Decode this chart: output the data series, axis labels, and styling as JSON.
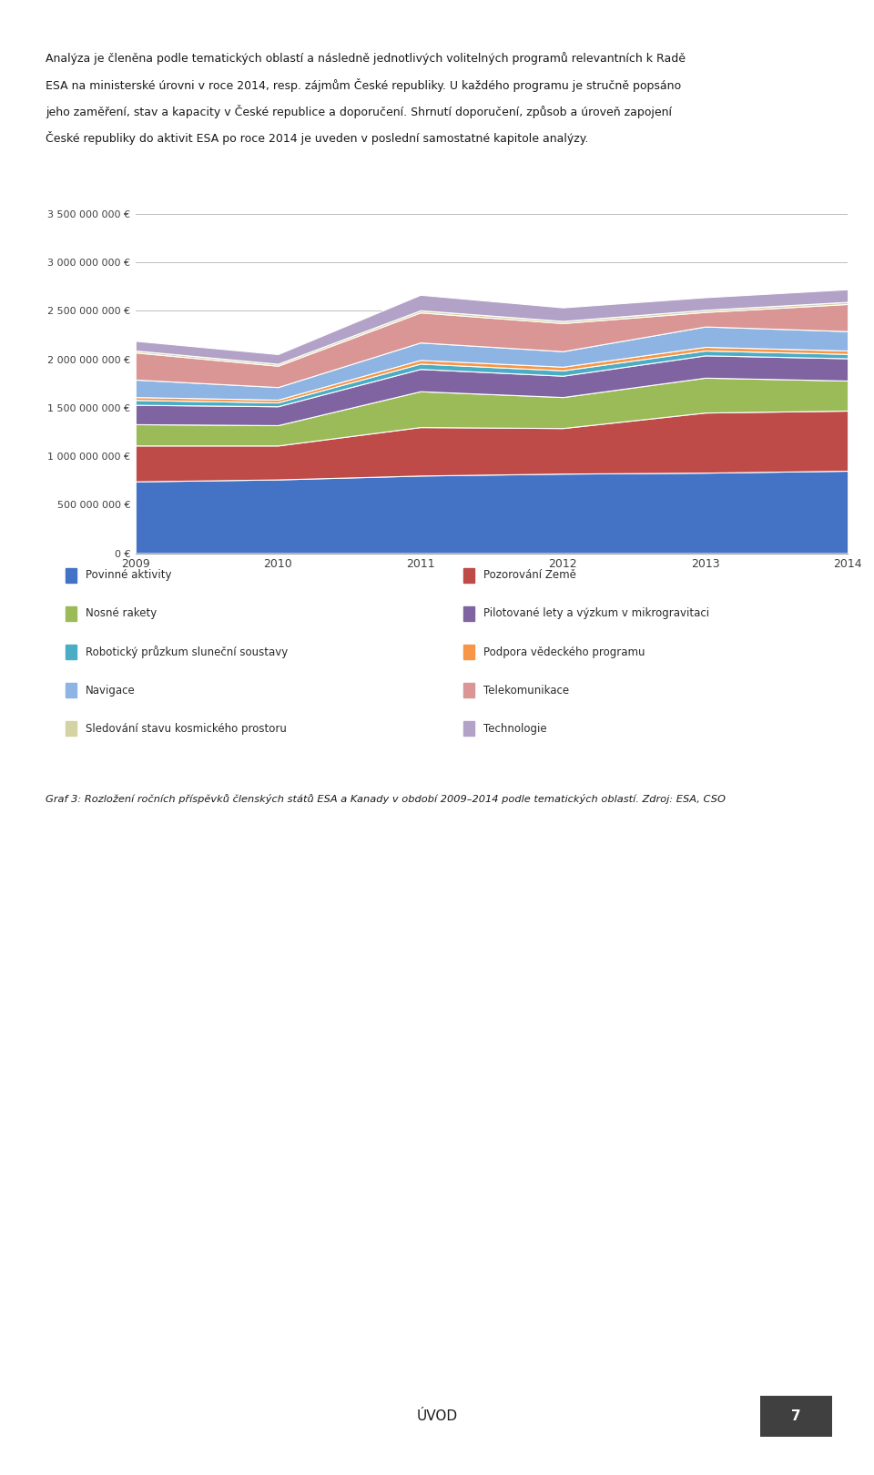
{
  "years": [
    2009,
    2010,
    2011,
    2012,
    2013,
    2014
  ],
  "series": {
    "Povinné aktivity": [
      740000000,
      760000000,
      800000000,
      820000000,
      830000000,
      850000000
    ],
    "Pozorování Země": [
      370000000,
      350000000,
      500000000,
      470000000,
      620000000,
      620000000
    ],
    "Nosné rakety": [
      220000000,
      210000000,
      370000000,
      320000000,
      360000000,
      310000000
    ],
    "Pilotované lety a výzkum v mikrogravitaci": [
      200000000,
      195000000,
      230000000,
      220000000,
      230000000,
      230000000
    ],
    "Robotický průzkum sluneční soustavy": [
      50000000,
      40000000,
      55000000,
      55000000,
      50000000,
      45000000
    ],
    "Podpora vědeckého programu": [
      30000000,
      28000000,
      38000000,
      38000000,
      38000000,
      35000000
    ],
    "Navigace": [
      180000000,
      130000000,
      180000000,
      160000000,
      210000000,
      200000000
    ],
    "Telekomunikace": [
      280000000,
      220000000,
      310000000,
      290000000,
      150000000,
      280000000
    ],
    "Sledování stavu kosmického prostoru": [
      20000000,
      20000000,
      22000000,
      22000000,
      22000000,
      22000000
    ],
    "Technologie": [
      100000000,
      100000000,
      160000000,
      140000000,
      130000000,
      130000000
    ]
  },
  "colors": {
    "Povinné aktivity": "#4472C4",
    "Pozorování Země": "#BE4B48",
    "Nosné rakety": "#9BBB59",
    "Pilotované lety a výzkum v mikrogravitaci": "#8064A2",
    "Robotický průzkum sluneční soustavy": "#4BACC6",
    "Podpora vědeckého programu": "#F79646",
    "Navigace": "#8DB4E2",
    "Telekomunikace": "#DA9694",
    "Sledování stavu kosmického prostoru": "#D3D3A4",
    "Technologie": "#B3A2C7"
  },
  "ylim": [
    0,
    3500000000
  ],
  "yticks": [
    0,
    500000000,
    1000000000,
    1500000000,
    2000000000,
    2500000000,
    3000000000,
    3500000000
  ],
  "ytick_labels": [
    "0 €",
    "500 000 000 €",
    "1 000 000 000 €",
    "1 500 000 000 €",
    "2 000 000 000 €",
    "2 500 000 000 €",
    "3 000 000 000 €",
    "3 500 000 000 €"
  ],
  "background_color": "#FFFFFF",
  "text_color": "#000000",
  "grid_color": "#BEBEBE",
  "caption_text": "Graf 3: Rozložení ročních příspěvků členských států ESA a Kanady v období 2009–2014 podle tematických oblastí. Zdroj: ESA, CSO",
  "header_lines": [
    "Analýza je členěna podle tematických oblastí a následně jednotlivých volitelných programů relevantních k Radě",
    "ESA na ministerské úrovni v roce 2014, resp. zájmům České republiky. U každého programu je stručně popsáno",
    "jeho zaměření, stav a kapacity v České republice a doporučení. Shrnutí doporučení, způsob a úroveň zapojení",
    "České republiky do aktivit ESA po roce 2014 je uveden v poslední samostatné kapitole analýzy."
  ],
  "footer_text": "ÚVOD",
  "page_number": "7",
  "legend_items_col1": [
    "Povinné aktivity",
    "Nosné rakety",
    "Robotický průzkum sluneční soustavy",
    "Navigace",
    "Sledování stavu kosmického prostoru"
  ],
  "legend_items_col2": [
    "Pozorování Země",
    "Pilotované lety a výzkum v mikrogravitaci",
    "Podpora vědeckého programu",
    "Telekomunikace",
    "Technologie"
  ]
}
